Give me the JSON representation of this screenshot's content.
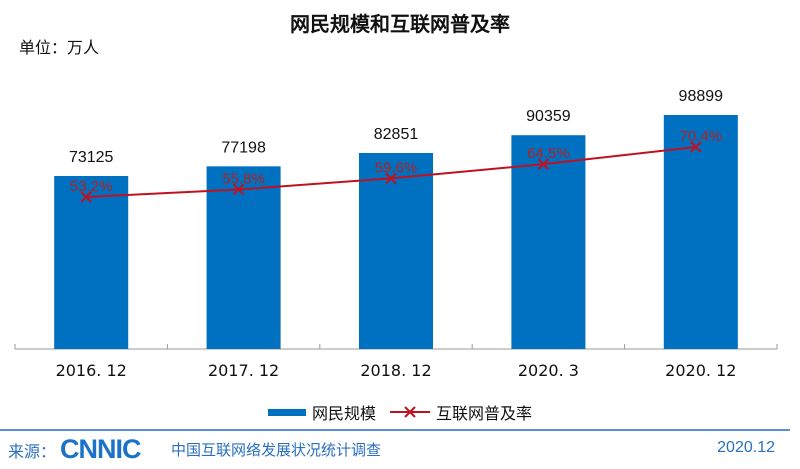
{
  "header": {
    "title": "网民规模和互联网普及率",
    "unit": "单位：万人"
  },
  "legend": {
    "bar_label": "网民规模",
    "line_label": "互联网普及率"
  },
  "footer": {
    "source_label": "来源：",
    "logo": "CNNIC",
    "survey": "中国互联网络发展状况统计调查",
    "date": "2020.12"
  },
  "colors": {
    "bar": "#0070c0",
    "line": "#c0111f",
    "label_red": "#b22222"
  },
  "chart_data": {
    "type": "bar",
    "title": "网民规模和互联网普及率",
    "xlabel": "",
    "ylabel": "单位：万人",
    "categories": [
      "2016. 12",
      "2017. 12",
      "2018. 12",
      "2020. 3",
      "2020. 12"
    ],
    "series": [
      {
        "name": "网民规模",
        "type": "bar",
        "values": [
          73125,
          77198,
          82851,
          90359,
          98899
        ],
        "labels": [
          "73125",
          "77198",
          "82851",
          "90359",
          "98899"
        ]
      },
      {
        "name": "互联网普及率",
        "type": "line",
        "values": [
          53.2,
          55.8,
          59.6,
          64.5,
          70.4
        ],
        "labels": [
          "53.2%",
          "55.8%",
          "59.6%",
          "64.5%",
          "70.4%"
        ]
      }
    ],
    "legend_position": "bottom",
    "grid": false
  }
}
